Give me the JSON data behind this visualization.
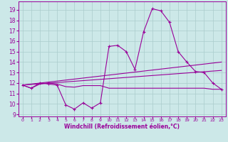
{
  "xlabel": "Windchill (Refroidissement éolien,°C)",
  "background_color": "#cce8e8",
  "grid_color": "#aacccc",
  "line_color": "#990099",
  "x_ticks": [
    0,
    1,
    2,
    3,
    4,
    5,
    6,
    7,
    8,
    9,
    10,
    11,
    12,
    13,
    14,
    15,
    16,
    17,
    18,
    19,
    20,
    21,
    22,
    23
  ],
  "ylim": [
    8.8,
    19.8
  ],
  "xlim": [
    -0.5,
    23.5
  ],
  "yticks": [
    9,
    10,
    11,
    12,
    13,
    14,
    15,
    16,
    17,
    18,
    19
  ],
  "line1_x": [
    0,
    1,
    2,
    3,
    4,
    5,
    6,
    7,
    8,
    9,
    10,
    11,
    12,
    13,
    14,
    15,
    16,
    17,
    18,
    19,
    20,
    21,
    22,
    23
  ],
  "line1_y": [
    11.8,
    11.5,
    12.0,
    11.9,
    11.8,
    9.9,
    9.5,
    10.1,
    9.6,
    10.1,
    15.5,
    15.6,
    15.0,
    13.3,
    16.9,
    19.1,
    18.9,
    17.8,
    15.0,
    14.0,
    13.1,
    13.0,
    12.0,
    11.4
  ],
  "line2_x": [
    0,
    1,
    2,
    3,
    4,
    5,
    6,
    7,
    8,
    9,
    10,
    11,
    12,
    13,
    14,
    15,
    16,
    17,
    18,
    19,
    20,
    21,
    22,
    23
  ],
  "line2_y": [
    11.8,
    11.5,
    11.9,
    12.0,
    11.9,
    11.65,
    11.6,
    11.75,
    11.75,
    11.75,
    11.5,
    11.5,
    11.5,
    11.5,
    11.5,
    11.5,
    11.5,
    11.5,
    11.5,
    11.5,
    11.5,
    11.5,
    11.4,
    11.4
  ],
  "line3_x": [
    0,
    23
  ],
  "line3_y": [
    11.8,
    13.2
  ],
  "line4_x": [
    0,
    23
  ],
  "line4_y": [
    11.8,
    14.0
  ]
}
